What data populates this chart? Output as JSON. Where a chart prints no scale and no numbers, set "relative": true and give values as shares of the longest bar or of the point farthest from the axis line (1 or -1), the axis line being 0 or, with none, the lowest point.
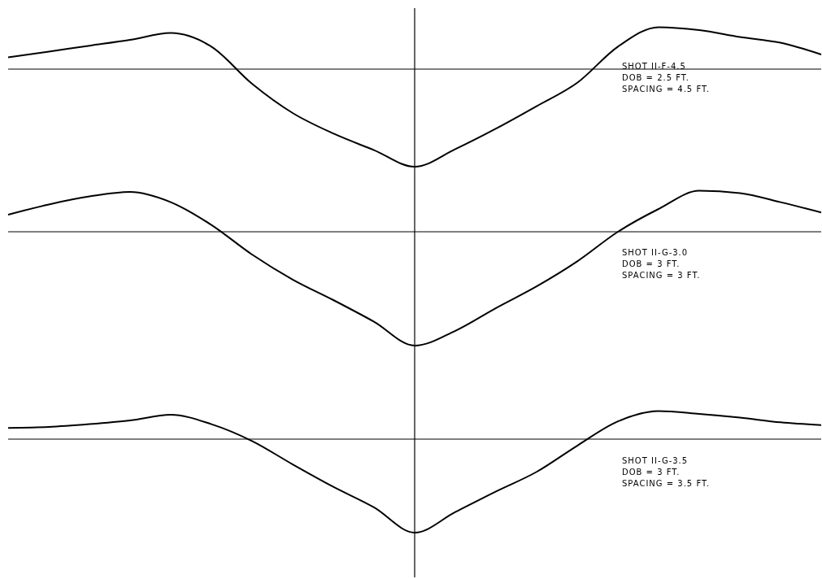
{
  "chart_data": [
    {
      "type": "line",
      "relative": true,
      "categories": [
        null,
        null,
        null,
        null,
        null,
        null,
        null,
        null,
        null,
        null,
        null,
        null,
        null,
        null,
        null,
        null,
        null,
        null,
        null,
        null,
        null
      ],
      "series": [
        {
          "color": "#000000",
          "values": [
            0.12,
            0.18,
            0.24,
            0.3,
            0.37,
            0.23,
            -0.15,
            -0.45,
            -0.66,
            -0.83,
            -1,
            -0.82,
            -0.61,
            -0.38,
            -0.14,
            0.23,
            0.43,
            0.4,
            0.33,
            0.27,
            0.15
          ]
        }
      ],
      "annotations": [
        "SHOT II-F-4.5",
        "DOB = 2.5 FT.",
        "SPACING = 4.5 FT."
      ],
      "tick_labels": false
    },
    {
      "type": "line",
      "relative": true,
      "categories": [
        null,
        null,
        null,
        null,
        null,
        null,
        null,
        null,
        null,
        null,
        null,
        null,
        null,
        null,
        null,
        null,
        null,
        null,
        null,
        null,
        null
      ],
      "series": [
        {
          "color": "#000000",
          "values": [
            0.15,
            0.24,
            0.31,
            0.35,
            0.26,
            0.06,
            -0.2,
            -0.42,
            -0.6,
            -0.79,
            -1,
            -0.87,
            -0.67,
            -0.48,
            -0.26,
            0,
            0.2,
            0.36,
            0.34,
            0.26,
            0.17
          ]
        }
      ],
      "annotations": [
        "SHOT II-G-3.0",
        "DOB = 3 FT.",
        "SPACING = 3 FT."
      ],
      "tick_labels": false
    },
    {
      "type": "line",
      "relative": true,
      "categories": [
        null,
        null,
        null,
        null,
        null,
        null,
        null,
        null,
        null,
        null,
        null,
        null,
        null,
        null,
        null,
        null,
        null,
        null,
        null,
        null,
        null
      ],
      "series": [
        {
          "color": "#000000",
          "values": [
            0.12,
            0.13,
            0.16,
            0.2,
            0.26,
            0.16,
            -0.02,
            -0.27,
            -0.51,
            -0.73,
            -1,
            -0.78,
            -0.56,
            -0.35,
            -0.07,
            0.19,
            0.3,
            0.27,
            0.23,
            0.18,
            0.15
          ]
        }
      ],
      "annotations": [
        "SHOT II-G-3.5",
        "DOB = 3 FT.",
        "SPACING = 3.5 FT."
      ],
      "tick_labels": false
    }
  ]
}
